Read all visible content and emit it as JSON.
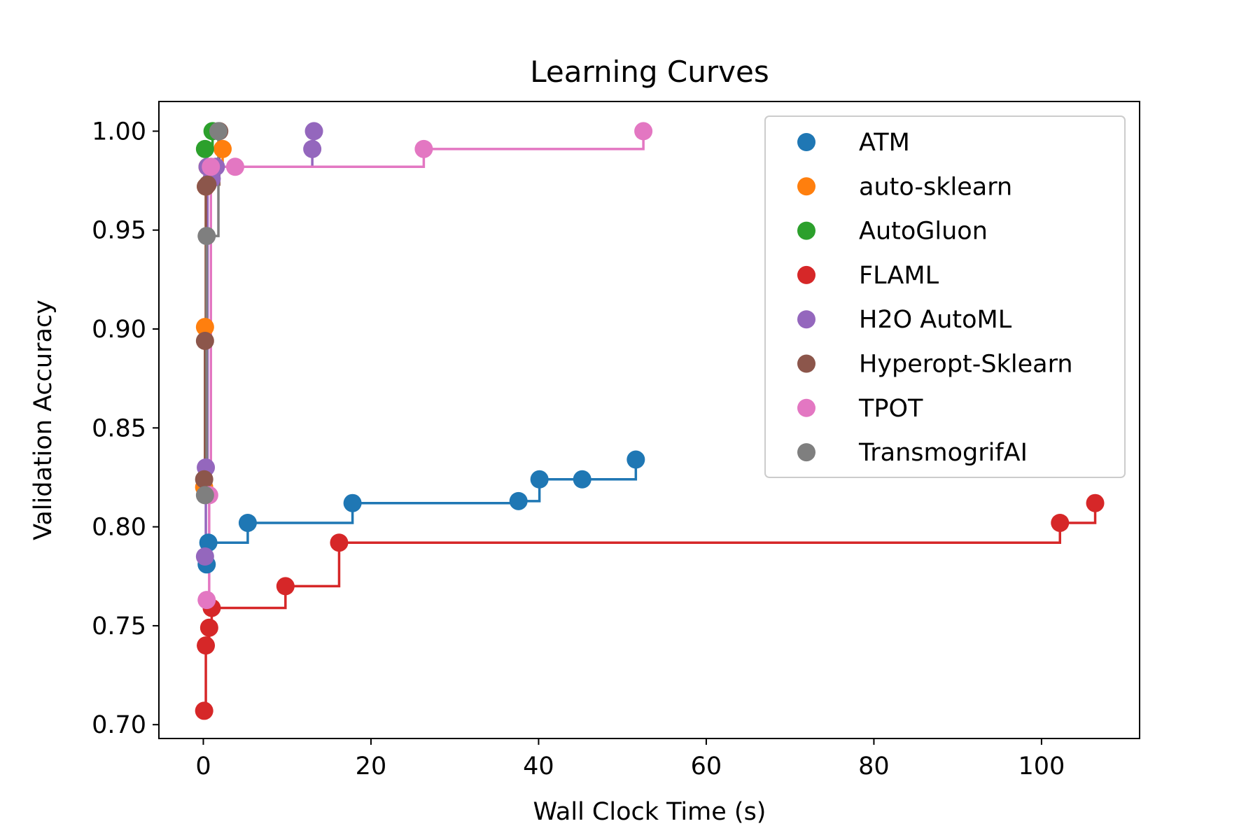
{
  "chart_data": {
    "type": "line",
    "title": "Learning Curves",
    "xlabel": "Wall Clock Time (s)",
    "ylabel": "Validation Accuracy",
    "xlim": [
      -5.3,
      111.7
    ],
    "ylim": [
      0.693,
      1.015
    ],
    "xticks": [
      0,
      20,
      40,
      60,
      80,
      100
    ],
    "yticks": [
      0.7,
      0.75,
      0.8,
      0.85,
      0.9,
      0.95,
      1.0
    ],
    "xtick_labels": [
      "0",
      "20",
      "40",
      "60",
      "80",
      "100"
    ],
    "ytick_labels": [
      "0.70",
      "0.75",
      "0.80",
      "0.85",
      "0.90",
      "0.95",
      "1.00"
    ],
    "grid": false,
    "legend_position": "top-right",
    "step": "post",
    "series": [
      {
        "name": "ATM",
        "color": "#1f77b4",
        "x": [
          0.4,
          0.6,
          5.3,
          17.8,
          37.6,
          40.1,
          45.2,
          51.6
        ],
        "y": [
          0.781,
          0.792,
          0.802,
          0.812,
          0.813,
          0.824,
          0.824,
          0.834
        ]
      },
      {
        "name": "auto-sklearn",
        "color": "#ff7f0e",
        "x": [
          0.1,
          0.2,
          0.3,
          0.5,
          2.3
        ],
        "y": [
          0.82,
          0.901,
          0.972,
          0.982,
          0.991
        ]
      },
      {
        "name": "AutoGluon",
        "color": "#2ca02c",
        "x": [
          0.2,
          1.1
        ],
        "y": [
          0.991,
          1.0
        ]
      },
      {
        "name": "FLAML",
        "color": "#d62728",
        "x": [
          0.1,
          0.3,
          0.7,
          1.0,
          9.8,
          16.2,
          102.2,
          106.4
        ],
        "y": [
          0.707,
          0.74,
          0.749,
          0.759,
          0.77,
          0.792,
          0.802,
          0.812
        ]
      },
      {
        "name": "H2O AutoML",
        "color": "#9467bd",
        "x": [
          0.2,
          0.3,
          0.5,
          1.0,
          1.5,
          13.0,
          13.2
        ],
        "y": [
          0.785,
          0.83,
          0.982,
          0.976,
          0.982,
          0.991,
          1.0
        ]
      },
      {
        "name": "Hyperopt-Sklearn",
        "color": "#8c564b",
        "x": [
          0.1,
          0.2,
          0.3,
          0.5,
          1.9
        ],
        "y": [
          0.824,
          0.894,
          0.972,
          0.973,
          1.0
        ]
      },
      {
        "name": "TPOT",
        "color": "#e377c2",
        "x": [
          0.4,
          0.7,
          0.9,
          3.8,
          26.3,
          52.5
        ],
        "y": [
          0.763,
          0.816,
          0.982,
          0.982,
          0.991,
          1.0
        ]
      },
      {
        "name": "TransmogrifAI",
        "color": "#7f7f7f",
        "x": [
          0.2,
          0.4,
          1.8
        ],
        "y": [
          0.816,
          0.947,
          1.0
        ]
      }
    ]
  }
}
